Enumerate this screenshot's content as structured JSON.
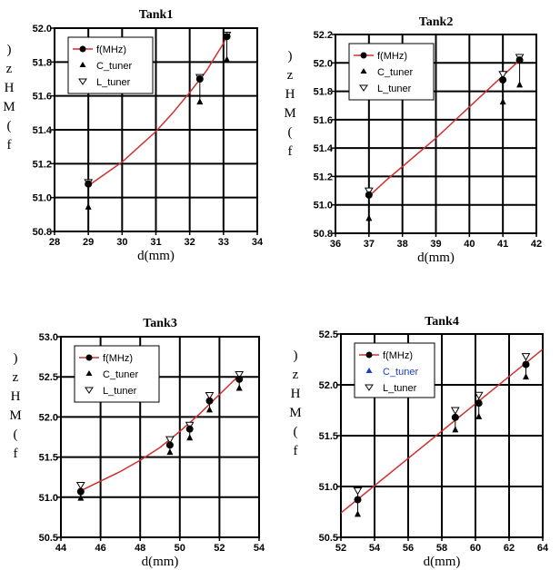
{
  "chart_data": [
    {
      "type": "scatter",
      "title": "Tank1",
      "xlabel": "d(mm)",
      "ylabel": ")zHM(f",
      "xlim": [
        28,
        34
      ],
      "ylim": [
        50.8,
        52.0
      ],
      "xticks": [
        "28",
        "29",
        "30",
        "31",
        "32",
        "33",
        "34"
      ],
      "yticks": [
        "50.8",
        "51.0",
        "51.2",
        "51.4",
        "51.6",
        "51.8",
        "52.0"
      ],
      "grid": true,
      "legend_position": "top-left",
      "fit_curve": {
        "name": "f(MHz)",
        "x": [
          29,
          29.5,
          30,
          30.5,
          31,
          31.5,
          32,
          32.5,
          33,
          33.1
        ],
        "y": [
          51.07,
          51.14,
          51.21,
          51.3,
          51.39,
          51.5,
          51.62,
          51.75,
          51.91,
          51.95
        ]
      },
      "series": [
        {
          "name": "f(MHz)",
          "x": [
            29,
            32.3,
            33.1
          ],
          "y": [
            51.08,
            51.7,
            51.95
          ]
        },
        {
          "name": "C_tuner",
          "x": [
            29,
            32.3,
            33.1
          ],
          "y": [
            50.94,
            51.56,
            51.81
          ]
        },
        {
          "name": "L_tuner",
          "x": [
            29,
            32.3,
            33.1
          ],
          "y": [
            51.09,
            51.71,
            51.96
          ]
        }
      ],
      "colors": {
        "curve": "#d03030",
        "marker": "#000000"
      }
    },
    {
      "type": "scatter",
      "title": "Tank2",
      "xlabel": "d(mm)",
      "ylabel": ")zHM(f",
      "xlim": [
        36,
        42
      ],
      "ylim": [
        50.8,
        52.2
      ],
      "xticks": [
        "36",
        "37",
        "38",
        "39",
        "40",
        "41",
        "42"
      ],
      "yticks": [
        "50.8",
        "51.0",
        "51.2",
        "51.4",
        "51.6",
        "51.8",
        "52.0",
        "52.2"
      ],
      "grid": true,
      "legend_position": "top-left",
      "fit_curve": {
        "name": "f(MHz)",
        "x": [
          37,
          37.5,
          38,
          38.5,
          39,
          39.5,
          40,
          40.5,
          41,
          41.5
        ],
        "y": [
          51.06,
          51.17,
          51.27,
          51.37,
          51.47,
          51.58,
          51.69,
          51.8,
          51.91,
          52.02
        ]
      },
      "series": [
        {
          "name": "f(MHz)",
          "x": [
            37,
            41,
            41.5
          ],
          "y": [
            51.07,
            51.88,
            52.02
          ]
        },
        {
          "name": "C_tuner",
          "x": [
            37,
            41,
            41.5
          ],
          "y": [
            50.9,
            51.72,
            51.84
          ]
        },
        {
          "name": "L_tuner",
          "x": [
            37,
            41,
            41.5
          ],
          "y": [
            51.1,
            51.92,
            52.04
          ]
        }
      ],
      "colors": {
        "curve": "#d03030",
        "marker": "#000000"
      }
    },
    {
      "type": "scatter",
      "title": "Tank3",
      "xlabel": "d(mm)",
      "ylabel": ")zHM(f",
      "xlim": [
        44,
        54
      ],
      "ylim": [
        50.5,
        53.0
      ],
      "xticks": [
        "44",
        "46",
        "48",
        "50",
        "52",
        "54"
      ],
      "yticks": [
        "50.5",
        "51.0",
        "51.5",
        "52.0",
        "52.5",
        "53.0"
      ],
      "grid": true,
      "legend_position": "top-left",
      "fit_curve": {
        "name": "f(MHz)",
        "x": [
          45,
          46,
          47,
          48,
          49,
          50,
          51,
          52,
          53
        ],
        "y": [
          51.08,
          51.2,
          51.32,
          51.46,
          51.62,
          51.82,
          52.04,
          52.28,
          52.52
        ]
      },
      "series": [
        {
          "name": "f(MHz)",
          "x": [
            45,
            49.5,
            50.5,
            51.5,
            53
          ],
          "y": [
            51.07,
            51.65,
            51.85,
            52.2,
            52.47
          ]
        },
        {
          "name": "C_tuner",
          "x": [
            45,
            49.5,
            50.5,
            51.5,
            53
          ],
          "y": [
            50.98,
            51.55,
            51.73,
            52.08,
            52.35
          ]
        },
        {
          "name": "L_tuner",
          "x": [
            45,
            49.5,
            50.5,
            51.5,
            53
          ],
          "y": [
            51.15,
            51.72,
            51.9,
            52.27,
            52.53
          ]
        }
      ],
      "colors": {
        "curve": "#d03030",
        "marker": "#000000"
      }
    },
    {
      "type": "scatter",
      "title": "Tank4",
      "xlabel": "d(mm)",
      "ylabel": ")zHM(f",
      "xlim": [
        52,
        64
      ],
      "ylim": [
        50.5,
        52.5
      ],
      "xticks": [
        "52",
        "54",
        "56",
        "58",
        "60",
        "62",
        "64"
      ],
      "yticks": [
        "50.5",
        "51.0",
        "51.5",
        "52.0",
        "52.5"
      ],
      "grid": true,
      "legend_position": "top-left",
      "fit_curve": {
        "name": "f(MHz)",
        "x": [
          52,
          64
        ],
        "y": [
          50.74,
          52.35
        ]
      },
      "series": [
        {
          "name": "f(MHz)",
          "x": [
            53,
            58.8,
            60.2,
            63
          ],
          "y": [
            50.87,
            51.68,
            51.82,
            52.2
          ]
        },
        {
          "name": "C_tuner",
          "x": [
            53,
            58.8,
            60.2,
            63
          ],
          "y": [
            50.72,
            51.55,
            51.68,
            52.07
          ]
        },
        {
          "name": "L_tuner",
          "x": [
            53,
            58.8,
            60.2,
            63
          ],
          "y": [
            50.96,
            51.75,
            51.9,
            52.28
          ]
        }
      ],
      "colors": {
        "curve": "#d03030",
        "marker": "#000000",
        "legend_c_tuner": "#1a3ec8"
      }
    }
  ]
}
